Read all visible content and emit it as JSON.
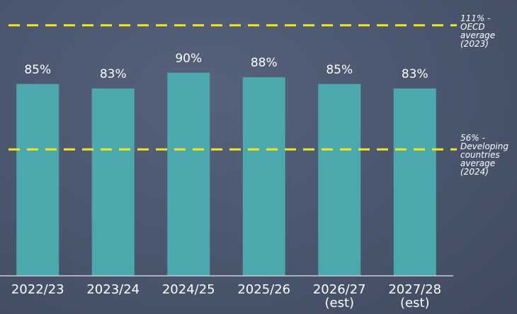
{
  "chart_data": {
    "type": "bar",
    "categories": [
      "2022/23",
      "2023/24",
      "2024/25",
      "2025/26",
      "2026/27\n(est)",
      "2027/28\n(est)"
    ],
    "values": [
      85,
      83,
      90,
      88,
      85,
      83
    ],
    "value_labels": [
      "85%",
      "83%",
      "90%",
      "88%",
      "85%",
      "83%"
    ],
    "color": "#4ba8ad",
    "ylim": [
      0,
      120
    ],
    "reference_lines": [
      {
        "value": 111,
        "label": "111% -\nOECD\naverage\n(2023)",
        "color": "#f5e614"
      },
      {
        "value": 56,
        "label": "56% -\nDeveloping\ncountries\naverage\n(2024)",
        "color": "#f5e614"
      }
    ]
  }
}
